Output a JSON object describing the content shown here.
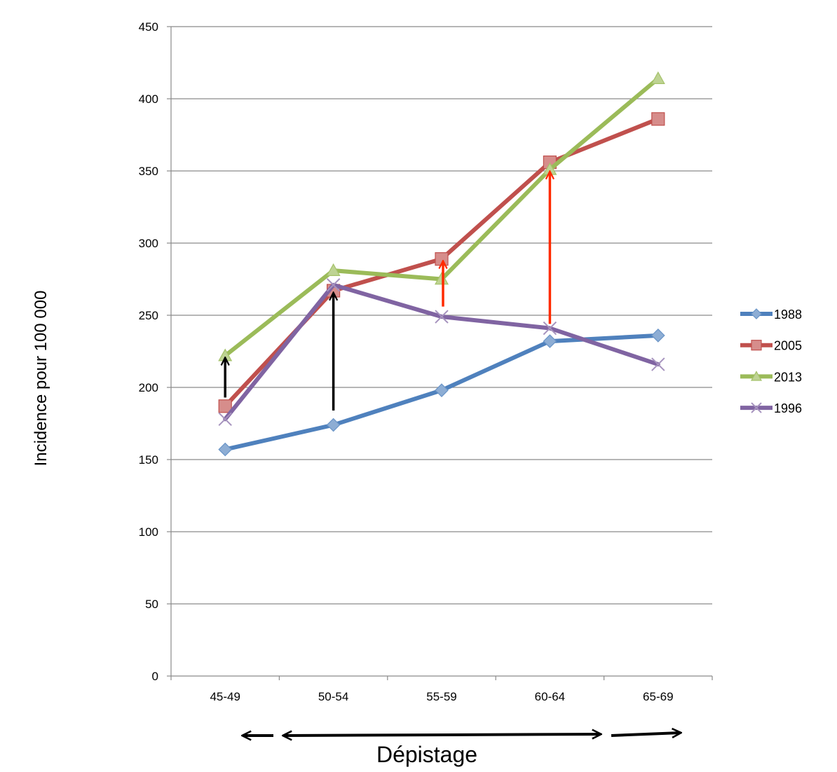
{
  "chart_data": {
    "type": "line",
    "title": "",
    "xlabel": "",
    "ylabel": "Incidence pour 100 000",
    "categories": [
      "45-49",
      "50-54",
      "55-59",
      "60-64",
      "65-69"
    ],
    "ylim": [
      0,
      450
    ],
    "yticks": [
      0,
      50,
      100,
      150,
      200,
      250,
      300,
      350,
      400,
      450
    ],
    "grid": true,
    "legend_position": "right",
    "series": [
      {
        "name": "1988",
        "color": "#4f81bd",
        "marker": "diamond",
        "values": [
          157,
          174,
          198,
          232,
          236
        ]
      },
      {
        "name": "2005",
        "color": "#c0504d",
        "marker": "square",
        "values": [
          187,
          267,
          289,
          356,
          386
        ]
      },
      {
        "name": "2013",
        "color": "#9bbb59",
        "marker": "triangle",
        "values": [
          222,
          281,
          275,
          351,
          414
        ]
      },
      {
        "name": "1996",
        "color": "#8064a2",
        "marker": "x",
        "values": [
          178,
          271,
          249,
          241,
          216
        ]
      }
    ],
    "annotations": {
      "caption": "Dépistage",
      "vertical_arrows": [
        {
          "category": "45-49",
          "from": 193,
          "to": 222,
          "color": "#000000"
        },
        {
          "category": "50-54",
          "from": 184,
          "to": 267,
          "color": "#000000"
        },
        {
          "category": "55-59",
          "from": 256,
          "to": 289,
          "color": "#ff2a00"
        },
        {
          "category": "60-64",
          "from": 244,
          "to": 351,
          "color": "#ff2a00"
        }
      ]
    }
  }
}
